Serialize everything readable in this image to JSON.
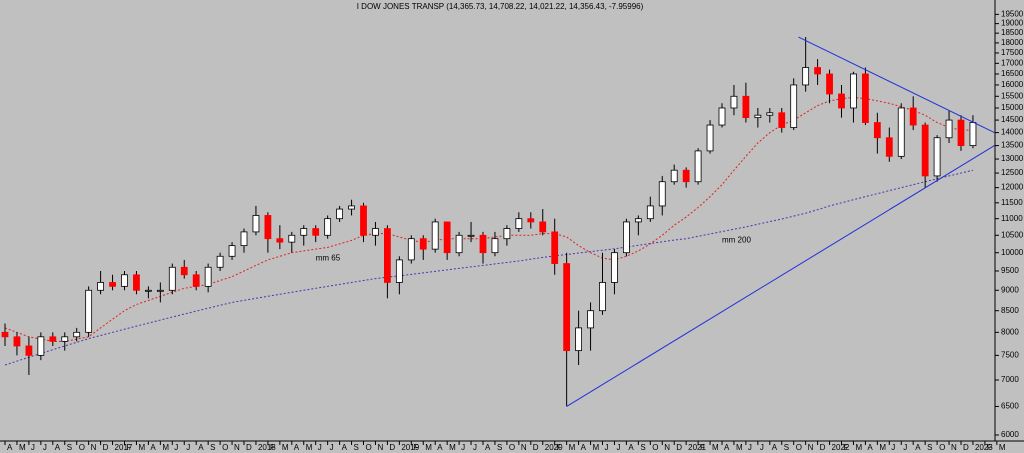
{
  "chart_data": {
    "type": "candlestick",
    "title": "I DOW JONES TRANSP (14,365.73, 14,708.22, 14,021.22, 14,356.43, -7.95996)",
    "categories": [
      "A",
      "M",
      "J",
      "J",
      "A",
      "S",
      "O",
      "N",
      "D",
      "2017",
      "F",
      "M",
      "A",
      "M",
      "J",
      "J",
      "A",
      "S",
      "O",
      "N",
      "D",
      "2018",
      "F",
      "M",
      "A",
      "M",
      "J",
      "J",
      "A",
      "S",
      "O",
      "N",
      "D",
      "2019",
      "F",
      "M",
      "A",
      "M",
      "J",
      "J",
      "A",
      "S",
      "O",
      "N",
      "D",
      "2020",
      "F",
      "M",
      "A",
      "M",
      "J",
      "J",
      "A",
      "S",
      "O",
      "N",
      "D",
      "2021",
      "F",
      "M",
      "A",
      "M",
      "J",
      "J",
      "A",
      "S",
      "O",
      "N",
      "D",
      "2022",
      "F",
      "M",
      "A",
      "M",
      "J",
      "J",
      "A",
      "S",
      "O",
      "N",
      "D",
      "2023",
      "F",
      "M"
    ],
    "open": [
      8000,
      7900,
      7700,
      7500,
      7900,
      7800,
      7900,
      8000,
      9000,
      9200,
      9100,
      9400,
      9000,
      9000,
      9000,
      9600,
      9400,
      9100,
      9600,
      9900,
      10200,
      10600,
      11100,
      10400,
      10300,
      10500,
      10700,
      10500,
      11000,
      11300,
      11400,
      10500,
      10700,
      9200,
      9800,
      10400,
      10100,
      10900,
      10000,
      10500,
      10500,
      10000,
      10400,
      10700,
      11000,
      10900,
      10600,
      9700,
      7600,
      8100,
      8500,
      9200,
      10000,
      10900,
      11000,
      11400,
      12200,
      12600,
      12200,
      13300,
      14300,
      15000,
      15500,
      14600,
      14700,
      14800,
      14200,
      16000,
      16800,
      16500,
      15600,
      15000,
      16500,
      14400,
      13800,
      13100,
      15000,
      14300,
      12400,
      13800,
      14500,
      13500,
      null,
      null
    ],
    "high": [
      8200,
      8000,
      7900,
      8000,
      8000,
      8000,
      8100,
      9100,
      9500,
      9400,
      9500,
      9500,
      9100,
      9200,
      9700,
      9800,
      9500,
      9700,
      10000,
      10300,
      10700,
      11400,
      11200,
      10800,
      10600,
      10800,
      10800,
      11100,
      11400,
      11600,
      11500,
      10900,
      10800,
      9900,
      10500,
      10500,
      11000,
      10900,
      10600,
      10900,
      10600,
      10600,
      10800,
      11200,
      11200,
      11300,
      11000,
      10000,
      8500,
      8700,
      10000,
      10100,
      11000,
      11100,
      11700,
      12400,
      12800,
      12700,
      13400,
      14500,
      15200,
      16000,
      16100,
      15000,
      15000,
      15000,
      16300,
      18300,
      17200,
      16700,
      16000,
      16600,
      16800,
      14800,
      14200,
      15200,
      15500,
      14400,
      13900,
      14900,
      14700,
      14700,
      null,
      null
    ],
    "low": [
      7700,
      7500,
      7100,
      7400,
      7700,
      7600,
      7800,
      7900,
      8900,
      9000,
      9000,
      8900,
      8800,
      8700,
      8900,
      9300,
      9000,
      8950,
      9500,
      9800,
      10000,
      10500,
      10000,
      10100,
      10000,
      10200,
      10300,
      10400,
      10900,
      11100,
      10300,
      10200,
      8800,
      8900,
      9700,
      9800,
      10000,
      9800,
      9900,
      10300,
      9700,
      9900,
      10200,
      10600,
      10700,
      10500,
      9400,
      6500,
      7300,
      7600,
      8400,
      8900,
      9900,
      10500,
      10900,
      11100,
      12100,
      12000,
      12100,
      13200,
      14200,
      14700,
      14400,
      14200,
      14400,
      14000,
      14100,
      15700,
      16000,
      15200,
      14600,
      14400,
      14300,
      13200,
      12900,
      13000,
      14100,
      12000,
      12200,
      13600,
      13300,
      13400,
      null,
      null
    ],
    "close": [
      7900,
      7700,
      7500,
      7900,
      7800,
      7900,
      8000,
      9000,
      9200,
      9100,
      9400,
      9000,
      9000,
      9000,
      9600,
      9400,
      9100,
      9600,
      9900,
      10200,
      10600,
      11100,
      10400,
      10300,
      10500,
      10700,
      10500,
      11000,
      11300,
      11400,
      10500,
      10700,
      9200,
      9800,
      10400,
      10100,
      10900,
      10000,
      10500,
      10500,
      10000,
      10400,
      10700,
      11000,
      10900,
      10600,
      9700,
      7600,
      8100,
      8500,
      9200,
      10000,
      10900,
      11000,
      11400,
      12200,
      12600,
      12200,
      13300,
      14300,
      15000,
      15500,
      14600,
      14700,
      14800,
      14200,
      16000,
      16800,
      16500,
      15600,
      15000,
      16500,
      14400,
      13800,
      13100,
      15000,
      14300,
      12400,
      13800,
      14500,
      13500,
      14400,
      null,
      null
    ],
    "up_color": "#ffffff",
    "down_color": "#ff0000",
    "series": [
      {
        "name": "mm 65",
        "color": "#e02020",
        "values": [
          8100,
          8000,
          7900,
          7850,
          7800,
          7800,
          7850,
          7900,
          8100,
          8300,
          8500,
          8650,
          8750,
          8850,
          8950,
          9050,
          9100,
          9150,
          9250,
          9350,
          9500,
          9650,
          9800,
          9900,
          10000,
          10050,
          10100,
          10150,
          10250,
          10350,
          10500,
          10550,
          10550,
          10450,
          10350,
          10300,
          10350,
          10400,
          10400,
          10400,
          10400,
          10450,
          10500,
          10500,
          10500,
          10550,
          10550,
          10450,
          10200,
          10000,
          9850,
          9800,
          9900,
          10050,
          10250,
          10500,
          10800,
          11050,
          11350,
          11700,
          12100,
          12600,
          13100,
          13600,
          14000,
          14300,
          14500,
          14800,
          15100,
          15300,
          15400,
          15450,
          15400,
          15300,
          15200,
          15050,
          14900,
          14700,
          14400,
          14200,
          14100,
          14100,
          null,
          null
        ]
      },
      {
        "name": "mm 200",
        "color": "#4a35b0",
        "values": [
          7300,
          7380,
          7460,
          7540,
          7620,
          7700,
          7780,
          7860,
          7930,
          8000,
          8070,
          8140,
          8210,
          8280,
          8350,
          8420,
          8490,
          8560,
          8630,
          8700,
          8750,
          8800,
          8850,
          8900,
          8950,
          9000,
          9050,
          9100,
          9150,
          9200,
          9250,
          9300,
          9340,
          9370,
          9410,
          9450,
          9490,
          9530,
          9570,
          9610,
          9650,
          9690,
          9730,
          9770,
          9820,
          9870,
          9910,
          9950,
          9990,
          10030,
          10070,
          10110,
          10160,
          10210,
          10260,
          10310,
          10360,
          10400,
          10470,
          10540,
          10610,
          10680,
          10750,
          10830,
          10910,
          10990,
          11080,
          11170,
          11280,
          11400,
          11500,
          11600,
          11700,
          11800,
          11900,
          12000,
          12100,
          12200,
          12300,
          12400,
          12500,
          12600,
          null,
          null
        ]
      }
    ],
    "trendlines": [
      {
        "color": "#2030d8",
        "x": [
          66.4,
          82.8
        ],
        "y": [
          18300,
          14000
        ]
      },
      {
        "color": "#2030d8",
        "x": [
          47,
          82.8
        ],
        "y": [
          6500,
          13500
        ]
      }
    ],
    "log": true,
    "ylim": [
      5900,
      20300
    ],
    "yticks": [
      6000,
      6500,
      7000,
      7500,
      8000,
      8500,
      9000,
      9500,
      10000,
      10500,
      11000,
      11500,
      12000,
      12500,
      13000,
      13500,
      14000,
      14500,
      15000,
      15500,
      16000,
      16500,
      17000,
      17500,
      18000,
      18500,
      19000,
      19500
    ]
  }
}
